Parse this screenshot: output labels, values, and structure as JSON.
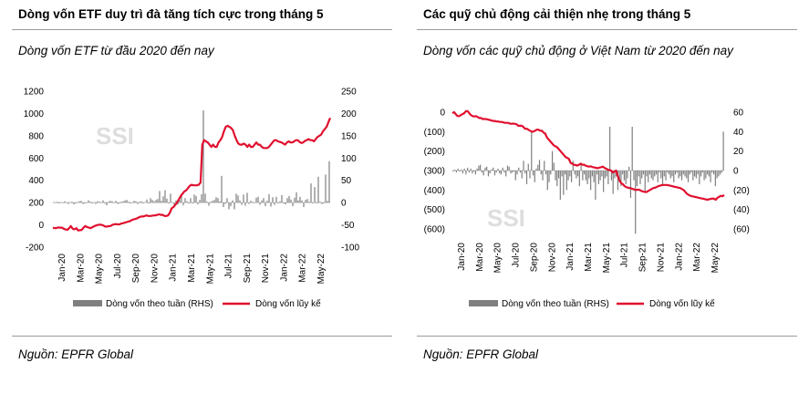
{
  "panels": [
    {
      "heading": "Dòng vốn ETF duy trì đà tăng tích cực trong tháng 5",
      "subtitle": "Dòng vốn ETF từ đầu 2020 đến nay",
      "source": "Nguồn: EPFR Global"
    },
    {
      "heading": "Các quỹ chủ động cải thiện nhẹ trong tháng 5",
      "subtitle": "Dòng vốn các quỹ chủ động ở Việt Nam từ 2020 đến nay",
      "source": "Nguồn: EPFR Global"
    }
  ],
  "colors": {
    "bar": "#7f7f7f",
    "line": "#e0102f",
    "rule": "#9a9a9a",
    "watermark": "#dedede"
  },
  "chart_data": [
    {
      "type": "bar+line",
      "watermark": "SSI",
      "x_ticks": [
        "Jan-20",
        "Mar-20",
        "May-20",
        "Jul-20",
        "Sep-20",
        "Nov-20",
        "Jan-21",
        "Mar-21",
        "May-21",
        "Jul-21",
        "Sep-21",
        "Nov-21",
        "Jan-22",
        "Mar-22",
        "May-22"
      ],
      "y_left": {
        "ticks": [
          "1200",
          "1000",
          "800",
          "600",
          "400",
          "200",
          "0",
          "-200"
        ],
        "ylim": [
          -200,
          1200
        ]
      },
      "y_right": {
        "ticks": [
          "250",
          "200",
          "150",
          "100",
          "50",
          "0",
          "-50",
          "-100"
        ],
        "ylim": [
          -100,
          250
        ]
      },
      "series": [
        {
          "name": "Dòng vốn theo tuần (RHS)",
          "kind": "bar",
          "axis": "right",
          "values": [
            1,
            -1,
            2,
            -2,
            1,
            -1,
            3,
            -1,
            -3,
            1,
            2,
            -4,
            -2,
            1,
            3,
            4,
            -3,
            -2,
            -1,
            5,
            2,
            -2,
            1,
            -3,
            3,
            2,
            1,
            5,
            -2,
            -6,
            2,
            4,
            3,
            -1,
            4,
            -3,
            -2,
            2,
            3,
            5,
            6,
            2,
            -2,
            -1,
            4,
            3,
            -3,
            2,
            3,
            -2,
            1,
            7,
            -2,
            10,
            6,
            3,
            6,
            8,
            26,
            4,
            14,
            28,
            9,
            -2,
            20,
            1,
            -6,
            5,
            -4,
            6,
            19,
            -6,
            10,
            3,
            -2,
            10,
            -2,
            18,
            15,
            -4,
            6,
            19,
            207,
            20,
            2,
            -7,
            2,
            4,
            6,
            12,
            10,
            3,
            60,
            -10,
            -3,
            10,
            -15,
            -8,
            5,
            -15,
            20,
            16,
            5,
            -5,
            18,
            -7,
            22,
            -3,
            4,
            2,
            0,
            11,
            13,
            -5,
            5,
            10,
            -8,
            4,
            19,
            -9,
            12,
            -5,
            13,
            -2,
            3,
            17,
            -2,
            -4,
            10,
            15,
            7,
            -8,
            11,
            23,
            5,
            13,
            5,
            -10,
            6,
            8,
            2,
            43,
            -2,
            35,
            -2,
            58,
            2,
            -3,
            -2,
            63,
            4,
            93
          ]
        },
        {
          "name": "Dòng vốn lũy kế",
          "kind": "line",
          "axis": "left",
          "values": [
            -25,
            -30,
            -28,
            -22,
            -26,
            -24,
            -35,
            -40,
            -45,
            -30,
            -10,
            -35,
            -40,
            -30,
            -50,
            -48,
            -45,
            -25,
            -10,
            -20,
            -25,
            -30,
            -20,
            -12,
            -5,
            0,
            2,
            0,
            -5,
            -15,
            -15,
            -12,
            -10,
            0,
            5,
            7,
            5,
            5,
            12,
            15,
            20,
            25,
            30,
            35,
            45,
            50,
            55,
            60,
            70,
            75,
            75,
            80,
            85,
            80,
            80,
            82,
            85,
            85,
            90,
            95,
            90,
            90,
            80,
            80,
            85,
            110,
            150,
            160,
            180,
            200,
            230,
            260,
            280,
            300,
            310,
            330,
            350,
            360,
            355,
            355,
            355,
            360,
            380,
            720,
            760,
            750,
            740,
            720,
            700,
            720,
            700,
            700,
            740,
            760,
            790,
            840,
            880,
            890,
            880,
            870,
            850,
            800,
            760,
            730,
            720,
            720,
            730,
            720,
            700,
            720,
            700,
            700,
            720,
            740,
            720,
            720,
            700,
            690,
            690,
            690,
            700,
            720,
            740,
            760,
            760,
            750,
            745,
            740,
            730,
            720,
            740,
            750,
            740,
            740,
            750,
            760,
            760,
            745,
            735,
            740,
            755,
            760,
            770,
            760,
            760,
            750,
            770,
            790,
            800,
            810,
            840,
            860,
            880,
            920,
            960
          ]
        }
      ]
    },
    {
      "type": "bar+line",
      "watermark": "SSI",
      "x_ticks": [
        "Jan-20",
        "Mar-20",
        "May-20",
        "Jul-20",
        "Sep-20",
        "Nov-20",
        "Jan-21",
        "Mar-21",
        "May-21",
        "Jul-21",
        "Sep-21",
        "Nov-21",
        "Jan-22",
        "Mar-22",
        "May-22"
      ],
      "y_left": {
        "ticks": [
          "0",
          "(100)",
          "(200)",
          "(300)",
          "(400)",
          "(500)",
          "(600)"
        ],
        "ylim": [
          -600,
          0
        ],
        "negative_color": "#e0102f"
      },
      "y_right": {
        "ticks": [
          "60",
          "40",
          "20",
          "0",
          "(20)",
          "(40)",
          "(60)"
        ],
        "ylim": [
          -60,
          60
        ],
        "negative_color": "#e0102f"
      },
      "series": [
        {
          "name": "Dòng vốn theo tuần (RHS)",
          "kind": "bar",
          "axis": "right",
          "values": [
            -1,
            1,
            -2,
            2,
            -1,
            1,
            -3,
            2,
            -4,
            3,
            -2,
            2,
            -3,
            -1,
            -4,
            2,
            5,
            6,
            -2,
            -5,
            3,
            4,
            -6,
            -3,
            1,
            3,
            -5,
            -2,
            2,
            -3,
            -4,
            3,
            -2,
            -6,
            5,
            4,
            -3,
            -2,
            -1,
            -10,
            -4,
            3,
            -2,
            -8,
            10,
            -3,
            -14,
            7,
            -8,
            40,
            -5,
            -12,
            2,
            6,
            11,
            -4,
            -10,
            10,
            -4,
            -20,
            -12,
            -4,
            20,
            8,
            -10,
            -16,
            -8,
            -30,
            -6,
            -25,
            -4,
            -20,
            -10,
            -6,
            -12,
            10,
            -4,
            -8,
            -6,
            -16,
            8,
            -10,
            -4,
            -10,
            -14,
            -8,
            -20,
            -6,
            -12,
            -30,
            -4,
            -14,
            -10,
            -6,
            -22,
            -8,
            -6,
            -14,
            45,
            -10,
            -24,
            -8,
            -6,
            -20,
            -12,
            -16,
            -4,
            -10,
            -14,
            -8,
            4,
            -28,
            45,
            -10,
            -65,
            -16,
            -6,
            -14,
            -8,
            -4,
            -22,
            -6,
            -12,
            -4,
            -8,
            -10,
            -6,
            -4,
            -12,
            -2,
            -8,
            -14,
            -6,
            -10,
            -2,
            -4,
            -8,
            -6,
            -12,
            -4,
            -2,
            -8,
            -6,
            -10,
            -4,
            -6,
            -8,
            -12,
            -4,
            -2,
            -10,
            -6,
            -8,
            -4,
            -14,
            -6,
            -2,
            -10,
            -8,
            -4,
            -6,
            -12,
            -2,
            -4,
            -16,
            -8,
            -6,
            -4,
            -2,
            40
          ]
        },
        {
          "name": "Dòng vốn lũy kế",
          "kind": "line",
          "axis": "left",
          "values": [
            -5,
            0,
            -10,
            -20,
            -20,
            -15,
            -10,
            -5,
            5,
            5,
            -5,
            -15,
            -20,
            -22,
            -20,
            -25,
            -30,
            -30,
            -35,
            -35,
            -35,
            -38,
            -40,
            -42,
            -45,
            -45,
            -48,
            -48,
            -50,
            -50,
            -52,
            -55,
            -55,
            -55,
            -58,
            -60,
            -58,
            -60,
            -62,
            -70,
            -70,
            -70,
            -75,
            -85,
            -85,
            -90,
            -95,
            -100,
            -100,
            -95,
            -90,
            -90,
            -95,
            -95,
            -105,
            -110,
            -130,
            -140,
            -150,
            -160,
            -170,
            -175,
            -180,
            -190,
            -200,
            -210,
            -220,
            -230,
            -235,
            -240,
            -260,
            -265,
            -270,
            -272,
            -274,
            -270,
            -265,
            -270,
            -270,
            -275,
            -278,
            -280,
            -278,
            -282,
            -284,
            -286,
            -288,
            -285,
            -283,
            -280,
            -285,
            -290,
            -295,
            -298,
            -300,
            -310,
            -305,
            -300,
            -330,
            -350,
            -365,
            -370,
            -380,
            -385,
            -388,
            -390,
            -392,
            -395,
            -398,
            -400,
            -398,
            -400,
            -405,
            -408,
            -410,
            -410,
            -405,
            -400,
            -395,
            -390,
            -388,
            -385,
            -380,
            -378,
            -375,
            -374,
            -374,
            -374,
            -376,
            -378,
            -380,
            -382,
            -384,
            -386,
            -388,
            -390,
            -395,
            -400,
            -410,
            -420,
            -425,
            -430,
            -432,
            -434,
            -436,
            -438,
            -440,
            -442,
            -444,
            -446,
            -448,
            -450,
            -448,
            -446,
            -444,
            -445,
            -450,
            -440,
            -435,
            -430,
            -432,
            -425
          ]
        }
      ]
    }
  ]
}
